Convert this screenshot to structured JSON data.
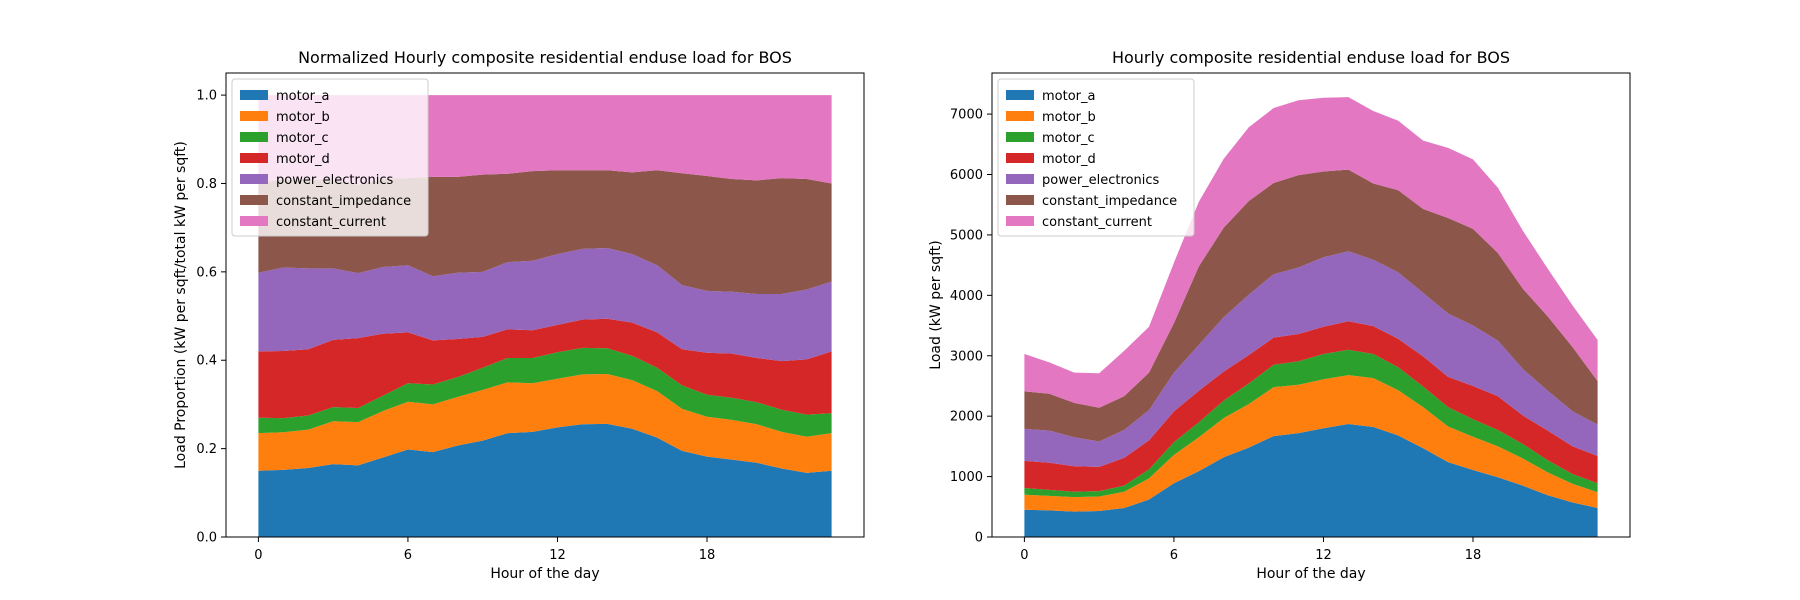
{
  "chart_data": [
    {
      "type": "area",
      "stacked": true,
      "title": "Normalized Hourly composite residential enduse load for BOS",
      "xlabel": "Hour of the day",
      "ylabel": "Load Proportion (kW per sqft/total kW per sqft)",
      "xlim": [
        -1.3,
        24.3
      ],
      "ylim": [
        0,
        1.05
      ],
      "xticks": [
        0,
        6,
        12,
        18
      ],
      "yticks": [
        0.0,
        0.2,
        0.4,
        0.6,
        0.8,
        1.0
      ],
      "ytick_labels": [
        "0.0",
        "0.2",
        "0.4",
        "0.6",
        "0.8",
        "1.0"
      ],
      "legend_position": "top-left",
      "x": [
        0,
        1,
        2,
        3,
        4,
        5,
        6,
        7,
        8,
        9,
        10,
        11,
        12,
        13,
        14,
        15,
        16,
        17,
        18,
        19,
        20,
        21,
        22,
        23
      ],
      "series": [
        {
          "name": "motor_a",
          "color": "#1f77b4",
          "values": [
            0.15,
            0.152,
            0.156,
            0.165,
            0.162,
            0.18,
            0.198,
            0.192,
            0.207,
            0.218,
            0.235,
            0.238,
            0.248,
            0.255,
            0.256,
            0.245,
            0.225,
            0.195,
            0.182,
            0.175,
            0.168,
            0.155,
            0.145,
            0.15
          ]
        },
        {
          "name": "motor_b",
          "color": "#ff7f0e",
          "values": [
            0.085,
            0.085,
            0.087,
            0.097,
            0.098,
            0.105,
            0.108,
            0.108,
            0.11,
            0.115,
            0.115,
            0.11,
            0.11,
            0.113,
            0.113,
            0.11,
            0.105,
            0.095,
            0.09,
            0.09,
            0.087,
            0.083,
            0.082,
            0.085
          ]
        },
        {
          "name": "motor_c",
          "color": "#2ca02c",
          "values": [
            0.035,
            0.032,
            0.032,
            0.032,
            0.032,
            0.035,
            0.042,
            0.045,
            0.045,
            0.05,
            0.055,
            0.057,
            0.06,
            0.06,
            0.058,
            0.055,
            0.053,
            0.053,
            0.05,
            0.05,
            0.05,
            0.05,
            0.05,
            0.045
          ]
        },
        {
          "name": "motor_d",
          "color": "#d62728",
          "values": [
            0.15,
            0.152,
            0.15,
            0.152,
            0.158,
            0.14,
            0.115,
            0.1,
            0.086,
            0.07,
            0.065,
            0.063,
            0.062,
            0.064,
            0.067,
            0.075,
            0.08,
            0.082,
            0.095,
            0.1,
            0.1,
            0.11,
            0.125,
            0.14
          ]
        },
        {
          "name": "power_electronics",
          "color": "#9467bd",
          "values": [
            0.178,
            0.189,
            0.183,
            0.162,
            0.147,
            0.151,
            0.152,
            0.145,
            0.15,
            0.147,
            0.152,
            0.157,
            0.16,
            0.16,
            0.16,
            0.155,
            0.152,
            0.145,
            0.14,
            0.14,
            0.145,
            0.152,
            0.158,
            0.158
          ]
        },
        {
          "name": "constant_impedance",
          "color": "#8c564b",
          "values": [
            0.202,
            0.2,
            0.2,
            0.2,
            0.2,
            0.199,
            0.197,
            0.225,
            0.217,
            0.22,
            0.2,
            0.203,
            0.19,
            0.178,
            0.176,
            0.185,
            0.215,
            0.253,
            0.26,
            0.255,
            0.257,
            0.262,
            0.25,
            0.222
          ]
        },
        {
          "name": "constant_current",
          "color": "#e377c2",
          "values": [
            0.2,
            0.19,
            0.192,
            0.192,
            0.203,
            0.19,
            0.188,
            0.185,
            0.185,
            0.18,
            0.178,
            0.172,
            0.17,
            0.17,
            0.17,
            0.175,
            0.17,
            0.177,
            0.183,
            0.19,
            0.193,
            0.188,
            0.19,
            0.2
          ]
        }
      ]
    },
    {
      "type": "area",
      "stacked": true,
      "title": "Hourly composite residential enduse load for BOS",
      "xlabel": "Hour of the day",
      "ylabel": "Load (kW per sqft)",
      "xlim": [
        -1.3,
        24.3
      ],
      "ylim": [
        0,
        7680
      ],
      "xticks": [
        0,
        6,
        12,
        18
      ],
      "yticks": [
        0,
        1000,
        2000,
        3000,
        4000,
        5000,
        6000,
        7000
      ],
      "ytick_labels": [
        "0",
        "1000",
        "2000",
        "3000",
        "4000",
        "5000",
        "6000",
        "7000"
      ],
      "legend_position": "top-left",
      "x": [
        0,
        1,
        2,
        3,
        4,
        5,
        6,
        7,
        8,
        9,
        10,
        11,
        12,
        13,
        14,
        15,
        16,
        17,
        18,
        19,
        20,
        21,
        22,
        23
      ],
      "series": [
        {
          "name": "motor_a",
          "color": "#1f77b4",
          "values": [
            450,
            440,
            420,
            430,
            480,
            620,
            890,
            1090,
            1320,
            1480,
            1670,
            1720,
            1800,
            1870,
            1820,
            1680,
            1470,
            1240,
            1110,
            990,
            850,
            690,
            570,
            480
          ]
        },
        {
          "name": "motor_b",
          "color": "#ff7f0e",
          "values": [
            250,
            240,
            240,
            240,
            270,
            350,
            470,
            560,
            650,
            720,
            810,
            800,
            810,
            810,
            810,
            750,
            680,
            590,
            550,
            510,
            450,
            380,
            310,
            260
          ]
        },
        {
          "name": "motor_c",
          "color": "#2ca02c",
          "values": [
            110,
            100,
            90,
            90,
            100,
            150,
            210,
            250,
            290,
            340,
            370,
            390,
            420,
            420,
            400,
            380,
            340,
            320,
            290,
            270,
            240,
            200,
            160,
            150
          ]
        },
        {
          "name": "motor_d",
          "color": "#d62728",
          "values": [
            450,
            450,
            420,
            400,
            460,
            480,
            510,
            520,
            480,
            470,
            450,
            450,
            450,
            470,
            460,
            470,
            500,
            500,
            550,
            560,
            470,
            490,
            460,
            450
          ]
        },
        {
          "name": "power_electronics",
          "color": "#9467bd",
          "values": [
            530,
            530,
            480,
            420,
            460,
            500,
            640,
            760,
            900,
            1000,
            1050,
            1100,
            1150,
            1160,
            1100,
            1100,
            1050,
            1050,
            1000,
            920,
            770,
            660,
            580,
            520
          ]
        },
        {
          "name": "constant_impedance",
          "color": "#8c564b",
          "values": [
            620,
            610,
            570,
            560,
            560,
            620,
            820,
            1300,
            1480,
            1550,
            1510,
            1530,
            1420,
            1350,
            1260,
            1360,
            1390,
            1580,
            1600,
            1450,
            1330,
            1230,
            1060,
            720
          ]
        },
        {
          "name": "constant_current",
          "color": "#e377c2",
          "values": [
            620,
            520,
            500,
            570,
            750,
            760,
            1000,
            1070,
            1140,
            1220,
            1240,
            1240,
            1220,
            1200,
            1200,
            1150,
            1130,
            1160,
            1150,
            1080,
            960,
            790,
            690,
            680
          ]
        }
      ]
    }
  ]
}
